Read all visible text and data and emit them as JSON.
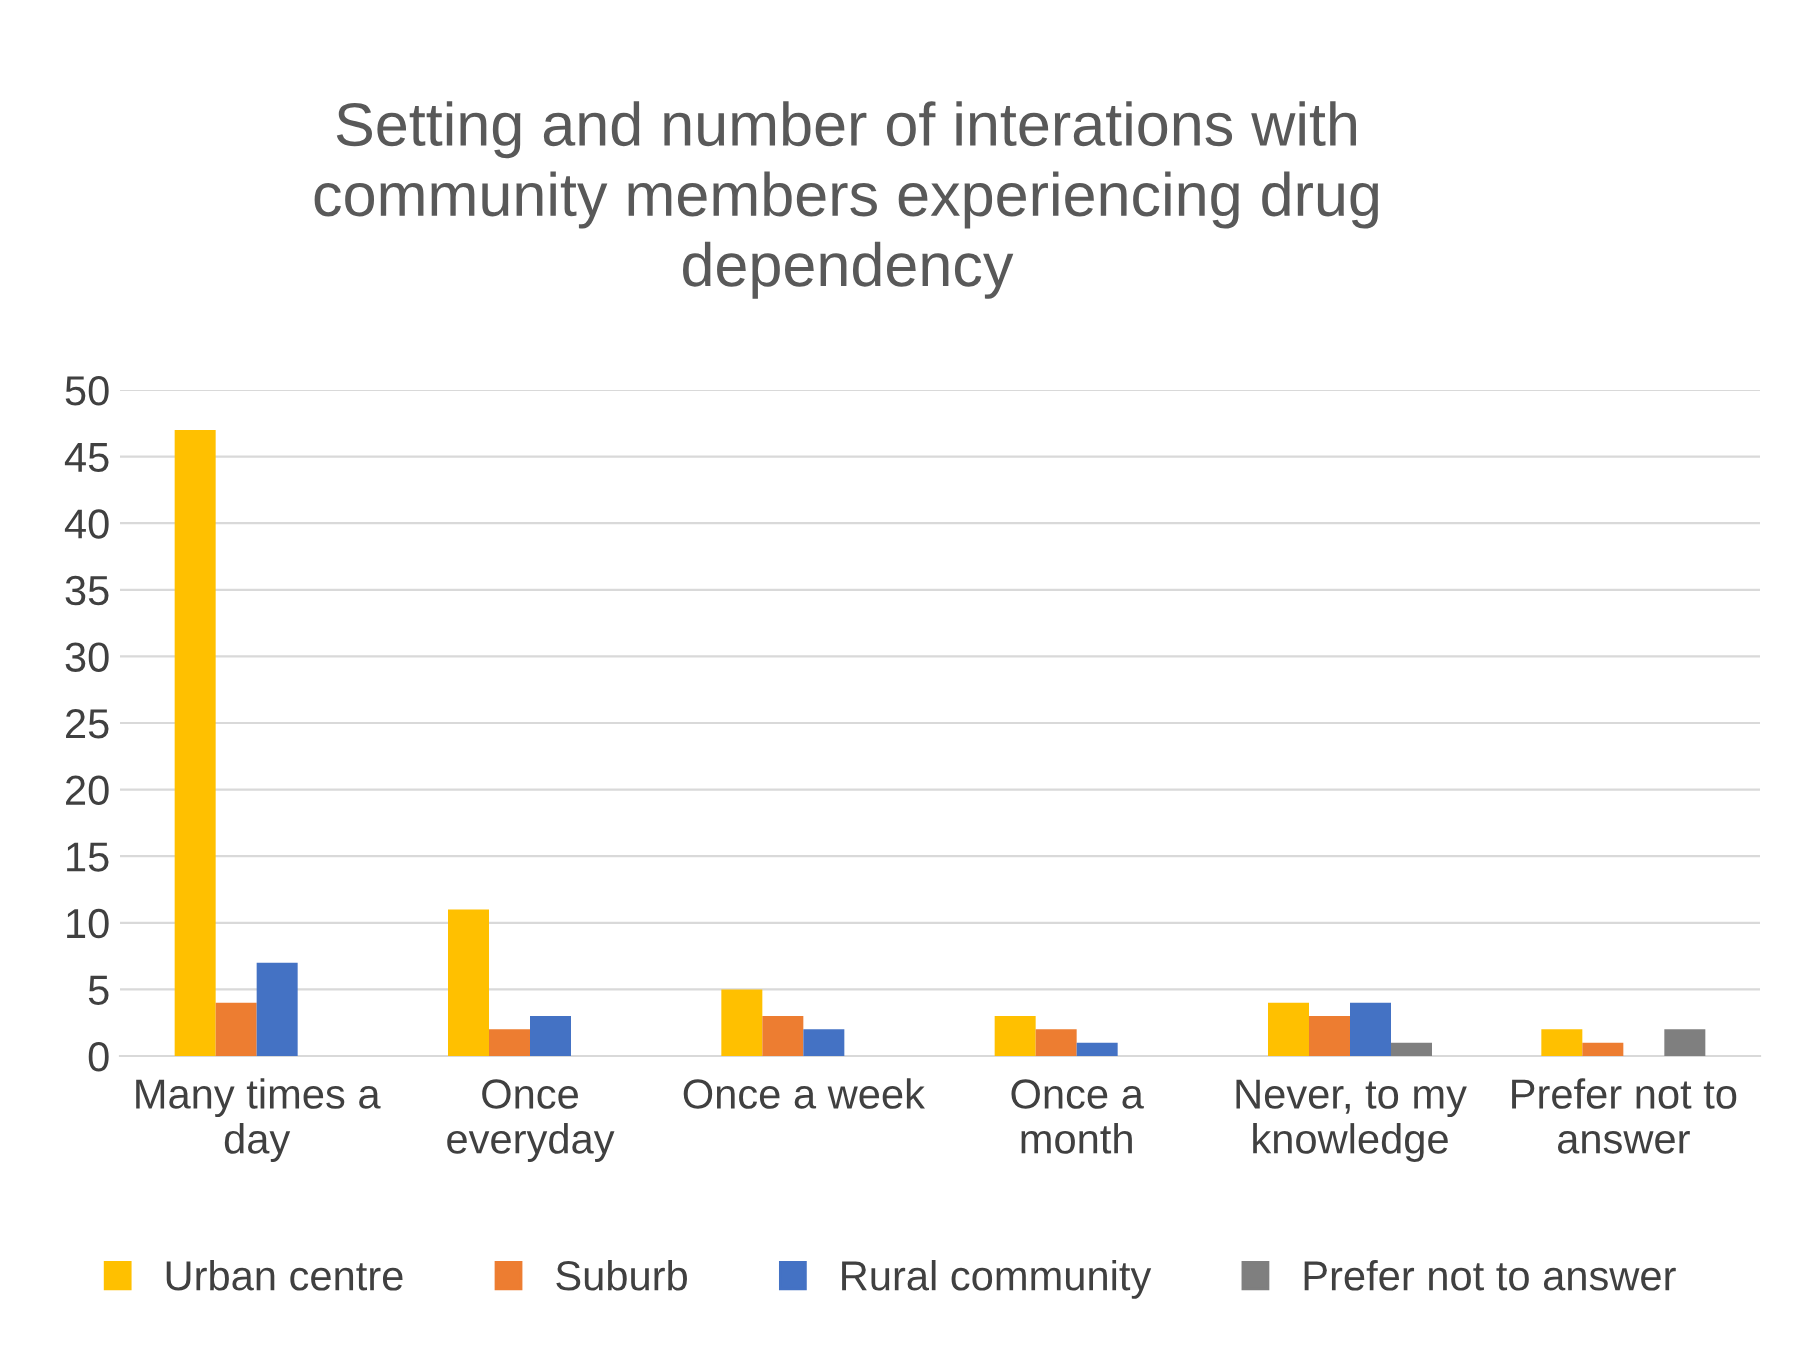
{
  "chart_data": {
    "type": "bar",
    "title": "Setting and number of interations with\ncommunity members experiencing drug\ndependency",
    "categories": [
      "Many times a\nday",
      "Once\neveryday",
      "Once a week",
      "Once a\nmonth",
      "Never, to my\nknowledge",
      "Prefer not to\nanswer"
    ],
    "series": [
      {
        "name": "Urban centre",
        "color": "#ffc000",
        "values": [
          47,
          11,
          5,
          3,
          4,
          2
        ]
      },
      {
        "name": "Suburb",
        "color": "#ed7d31",
        "values": [
          4,
          2,
          3,
          2,
          3,
          1
        ]
      },
      {
        "name": "Rural community",
        "color": "#4472c4",
        "values": [
          7,
          3,
          2,
          1,
          4,
          0
        ]
      },
      {
        "name": "Prefer not to answer",
        "color": "#7f7f7f",
        "values": [
          0,
          0,
          0,
          0,
          1,
          2
        ]
      }
    ],
    "ylim": [
      0,
      50
    ],
    "yticks": [
      0,
      5,
      10,
      15,
      20,
      25,
      30,
      35,
      40,
      45,
      50
    ],
    "grid": "y",
    "legend": "bottom"
  }
}
